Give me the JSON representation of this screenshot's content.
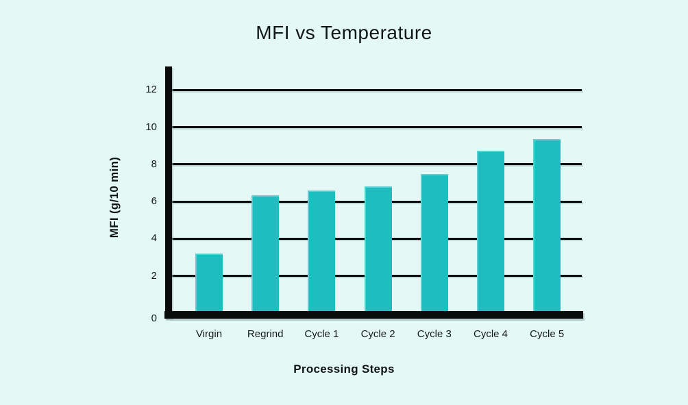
{
  "page": {
    "background_color": "#e4f9f6",
    "text_color": "#101516"
  },
  "chart_data": {
    "type": "bar",
    "title": "MFI vs Temperature",
    "xlabel": "Processing Steps",
    "ylabel": "MFI (g/10 min)",
    "categories": [
      "Virgin",
      "Regrind",
      "Cycle 1",
      "Cycle 2",
      "Cycle 3",
      "Cycle 4",
      "Cycle 5"
    ],
    "values": [
      3.2,
      6.35,
      6.6,
      6.8,
      7.5,
      8.75,
      9.35
    ],
    "y_ticks": [
      0,
      2,
      4,
      6,
      8,
      10,
      12
    ],
    "ylim": [
      0,
      12
    ],
    "bar_color": "#20bdbe",
    "axis_color": "#0a0c0c",
    "grid": true,
    "legend": false,
    "legend_position": "none"
  }
}
